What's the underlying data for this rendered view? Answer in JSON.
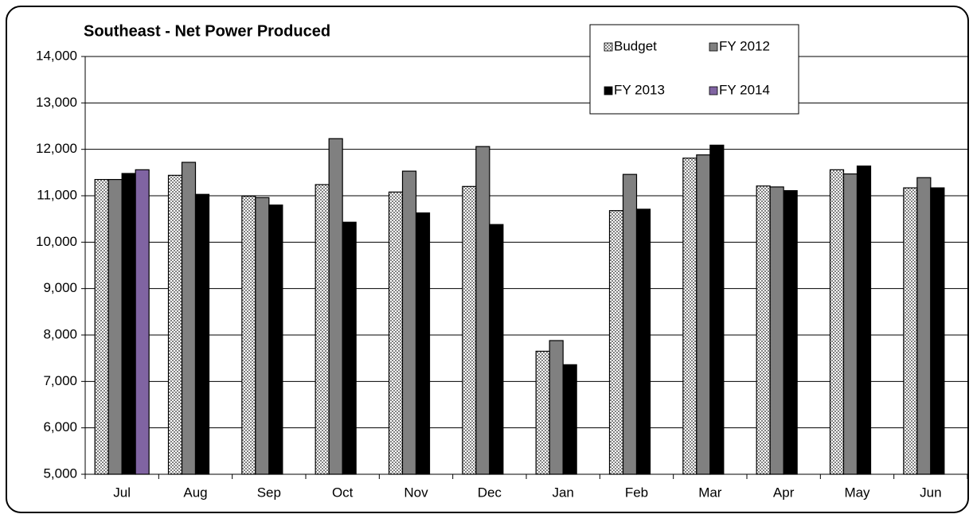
{
  "chart_data": {
    "type": "bar",
    "title": "Southeast - Net Power Produced",
    "categories": [
      "Jul",
      "Aug",
      "Sep",
      "Oct",
      "Nov",
      "Dec",
      "Jan",
      "Feb",
      "Mar",
      "Apr",
      "May",
      "Jun"
    ],
    "series": [
      {
        "name": "Budget",
        "color": "#c0c0c0",
        "pattern": "checkered",
        "values": [
          11350,
          11440,
          10990,
          11240,
          11080,
          11200,
          7650,
          10680,
          11810,
          11210,
          11560,
          11170
        ]
      },
      {
        "name": "FY 2012",
        "color": "#808080",
        "values": [
          11350,
          11720,
          10960,
          12230,
          11530,
          12060,
          7880,
          11460,
          11880,
          11190,
          11470,
          11390
        ]
      },
      {
        "name": "FY 2013",
        "color": "#000000",
        "values": [
          11480,
          11030,
          10800,
          10430,
          10630,
          10380,
          7360,
          10710,
          12090,
          11110,
          11640,
          11170
        ]
      },
      {
        "name": "FY 2014",
        "color": "#8064a2",
        "values": [
          11560,
          null,
          null,
          null,
          null,
          null,
          null,
          null,
          null,
          null,
          null,
          null
        ]
      }
    ],
    "ylim": [
      5000,
      14000
    ],
    "yticks": [
      {
        "value": 5000,
        "label": "5,000"
      },
      {
        "value": 6000,
        "label": "6,000"
      },
      {
        "value": 7000,
        "label": "7,000"
      },
      {
        "value": 8000,
        "label": "8,000"
      },
      {
        "value": 9000,
        "label": "9,000"
      },
      {
        "value": 10000,
        "label": "10,000"
      },
      {
        "value": 11000,
        "label": "11,000"
      },
      {
        "value": 12000,
        "label": "12,000"
      },
      {
        "value": 13000,
        "label": "13,000"
      },
      {
        "value": 14000,
        "label": "14,000"
      }
    ],
    "grid": true,
    "legend": "top-right"
  }
}
